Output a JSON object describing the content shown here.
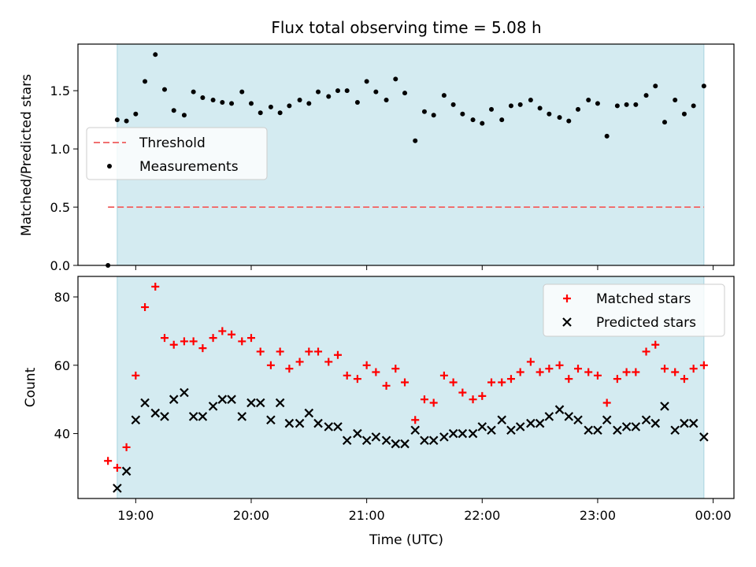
{
  "chart_data": [
    {
      "type": "scatter",
      "title": "Flux total observing time = 5.08 h",
      "xlabel": "",
      "ylabel": "Matched/Predicted stars",
      "xlim": [
        18.5,
        24.18
      ],
      "ylim": [
        0,
        1.9
      ],
      "yticks": [
        0.0,
        0.5,
        1.0,
        1.5
      ],
      "ytick_labels": [
        "0.0",
        "0.5",
        "1.0",
        "1.5"
      ],
      "shaded_span": [
        18.84,
        23.92
      ],
      "shade_color": "#d4ebf1",
      "legend_position": "center-left",
      "threshold": {
        "name": "Threshold",
        "y": 0.5,
        "x_range": [
          18.76,
          23.92
        ],
        "color": "#f07070"
      },
      "series": [
        {
          "name": "Measurements",
          "color": "#000000",
          "x": [
            18.76,
            18.84,
            18.92,
            19.0,
            19.08,
            19.17,
            19.25,
            19.33,
            19.42,
            19.5,
            19.58,
            19.67,
            19.75,
            19.83,
            19.92,
            20.0,
            20.08,
            20.17,
            20.25,
            20.33,
            20.42,
            20.5,
            20.58,
            20.67,
            20.75,
            20.83,
            20.92,
            21.0,
            21.08,
            21.17,
            21.25,
            21.33,
            21.42,
            21.5,
            21.58,
            21.67,
            21.75,
            21.83,
            21.92,
            22.0,
            22.08,
            22.17,
            22.25,
            22.33,
            22.42,
            22.5,
            22.58,
            22.67,
            22.75,
            22.83,
            22.92,
            23.0,
            23.08,
            23.17,
            23.25,
            23.33,
            23.42,
            23.5,
            23.58,
            23.67,
            23.75,
            23.83,
            23.92
          ],
          "y": [
            0.0,
            1.25,
            1.24,
            1.3,
            1.58,
            1.81,
            1.51,
            1.33,
            1.29,
            1.49,
            1.44,
            1.42,
            1.4,
            1.39,
            1.49,
            1.39,
            1.31,
            1.36,
            1.31,
            1.37,
            1.42,
            1.39,
            1.49,
            1.45,
            1.5,
            1.5,
            1.4,
            1.58,
            1.49,
            1.42,
            1.6,
            1.48,
            1.07,
            1.32,
            1.29,
            1.46,
            1.38,
            1.3,
            1.25,
            1.22,
            1.34,
            1.25,
            1.37,
            1.38,
            1.42,
            1.35,
            1.3,
            1.27,
            1.24,
            1.34,
            1.42,
            1.39,
            1.11,
            1.37,
            1.38,
            1.38,
            1.46,
            1.54,
            1.23,
            1.42,
            1.3,
            1.37,
            1.54
          ]
        }
      ]
    },
    {
      "type": "scatter",
      "title": "",
      "xlabel": "Time (UTC)",
      "ylabel": "Count",
      "xlim": [
        18.5,
        24.18
      ],
      "ylim": [
        21,
        86
      ],
      "yticks": [
        40,
        60,
        80
      ],
      "ytick_labels": [
        "40",
        "60",
        "80"
      ],
      "xticks": [
        19,
        20,
        21,
        22,
        23,
        24
      ],
      "xtick_labels": [
        "19:00",
        "20:00",
        "21:00",
        "22:00",
        "23:00",
        "00:00"
      ],
      "shaded_span": [
        18.84,
        23.92
      ],
      "shade_color": "#d4ebf1",
      "legend_position": "top-right",
      "series": [
        {
          "name": "Matched stars",
          "marker": "plus",
          "color": "#ff0000",
          "x": [
            18.76,
            18.84,
            18.92,
            19.0,
            19.08,
            19.17,
            19.25,
            19.33,
            19.42,
            19.5,
            19.58,
            19.67,
            19.75,
            19.83,
            19.92,
            20.0,
            20.08,
            20.17,
            20.25,
            20.33,
            20.42,
            20.5,
            20.58,
            20.67,
            20.75,
            20.83,
            20.92,
            21.0,
            21.08,
            21.17,
            21.25,
            21.33,
            21.42,
            21.5,
            21.58,
            21.67,
            21.75,
            21.83,
            21.92,
            22.0,
            22.08,
            22.17,
            22.25,
            22.33,
            22.42,
            22.5,
            22.58,
            22.67,
            22.75,
            22.83,
            22.92,
            23.0,
            23.08,
            23.17,
            23.25,
            23.33,
            23.42,
            23.5,
            23.58,
            23.67,
            23.75,
            23.83,
            23.92
          ],
          "y": [
            32,
            30,
            36,
            57,
            77,
            83,
            68,
            66,
            67,
            67,
            65,
            68,
            70,
            69,
            67,
            68,
            64,
            60,
            64,
            59,
            61,
            64,
            64,
            61,
            63,
            57,
            56,
            60,
            58,
            54,
            59,
            55,
            44,
            50,
            49,
            57,
            55,
            52,
            50,
            51,
            55,
            55,
            56,
            58,
            61,
            58,
            59,
            60,
            56,
            59,
            58,
            57,
            49,
            56,
            58,
            58,
            64,
            66,
            59,
            58,
            56,
            59,
            60
          ]
        },
        {
          "name": "Predicted stars",
          "marker": "x",
          "color": "#000000",
          "x": [
            18.84,
            18.92,
            19.0,
            19.08,
            19.17,
            19.25,
            19.33,
            19.42,
            19.5,
            19.58,
            19.67,
            19.75,
            19.83,
            19.92,
            20.0,
            20.08,
            20.17,
            20.25,
            20.33,
            20.42,
            20.5,
            20.58,
            20.67,
            20.75,
            20.83,
            20.92,
            21.0,
            21.08,
            21.17,
            21.25,
            21.33,
            21.42,
            21.5,
            21.58,
            21.67,
            21.75,
            21.83,
            21.92,
            22.0,
            22.08,
            22.17,
            22.25,
            22.33,
            22.42,
            22.5,
            22.58,
            22.67,
            22.75,
            22.83,
            22.92,
            23.0,
            23.08,
            23.17,
            23.25,
            23.33,
            23.42,
            23.5,
            23.58,
            23.67,
            23.75,
            23.83,
            23.92
          ],
          "y": [
            24,
            29,
            44,
            49,
            46,
            45,
            50,
            52,
            45,
            45,
            48,
            50,
            50,
            45,
            49,
            49,
            44,
            49,
            43,
            43,
            46,
            43,
            42,
            42,
            38,
            40,
            38,
            39,
            38,
            37,
            37,
            41,
            38,
            38,
            39,
            40,
            40,
            40,
            42,
            41,
            44,
            41,
            42,
            43,
            43,
            45,
            47,
            45,
            44,
            41,
            41,
            44,
            41,
            42,
            42,
            44,
            43,
            48,
            41,
            43,
            43,
            39
          ]
        }
      ]
    }
  ]
}
